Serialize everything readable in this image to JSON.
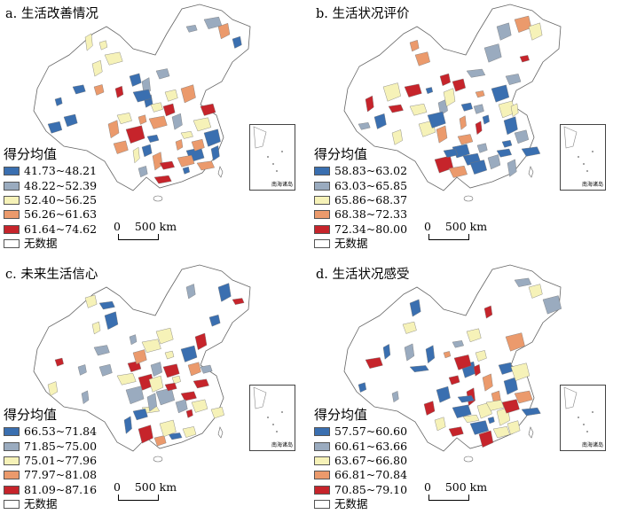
{
  "panels": [
    {
      "title": "a. 生活改善情况",
      "legend_title": "得分均值",
      "classes": [
        {
          "label": "41.73~48.21",
          "color": "#3a6fb0"
        },
        {
          "label": "48.22~52.39",
          "color": "#9aabbf"
        },
        {
          "label": "52.40~56.25",
          "color": "#f6f2b8"
        },
        {
          "label": "56.26~61.63",
          "color": "#eb9a6c"
        },
        {
          "label": "61.64~74.62",
          "color": "#c6242b"
        }
      ],
      "no_data_label": "无数据",
      "scale_label": "0    500 km",
      "inset_label": "南海诸岛"
    },
    {
      "title": "b. 生活状况评价",
      "legend_title": "得分均值",
      "classes": [
        {
          "label": "58.83~63.02",
          "color": "#3a6fb0"
        },
        {
          "label": "63.03~65.85",
          "color": "#9aabbf"
        },
        {
          "label": "65.86~68.37",
          "color": "#f6f2b8"
        },
        {
          "label": "68.38~72.33",
          "color": "#eb9a6c"
        },
        {
          "label": "72.34~80.00",
          "color": "#c6242b"
        }
      ],
      "no_data_label": "无数据",
      "scale_label": "0    500 km",
      "inset_label": "南海诸岛"
    },
    {
      "title": "c. 未来生活信心",
      "legend_title": "得分均值",
      "classes": [
        {
          "label": "66.53~71.84",
          "color": "#3a6fb0"
        },
        {
          "label": "71.85~75.00",
          "color": "#9aabbf"
        },
        {
          "label": "75.01~77.96",
          "color": "#f6f2b8"
        },
        {
          "label": "77.97~81.08",
          "color": "#eb9a6c"
        },
        {
          "label": "81.09~87.16",
          "color": "#c6242b"
        }
      ],
      "no_data_label": "无数据",
      "scale_label": "0    500 km",
      "inset_label": "南海诸岛"
    },
    {
      "title": "d. 生活状况感受",
      "legend_title": "得分均值",
      "classes": [
        {
          "label": "57.57~60.60",
          "color": "#3a6fb0"
        },
        {
          "label": "60.61~63.66",
          "color": "#9aabbf"
        },
        {
          "label": "63.67~66.80",
          "color": "#f6f2b8"
        },
        {
          "label": "66.81~70.84",
          "color": "#eb9a6c"
        },
        {
          "label": "70.85~79.10",
          "color": "#c6242b"
        }
      ],
      "no_data_label": "无数据",
      "scale_label": "0    500 km",
      "inset_label": "南海诸岛"
    }
  ]
}
